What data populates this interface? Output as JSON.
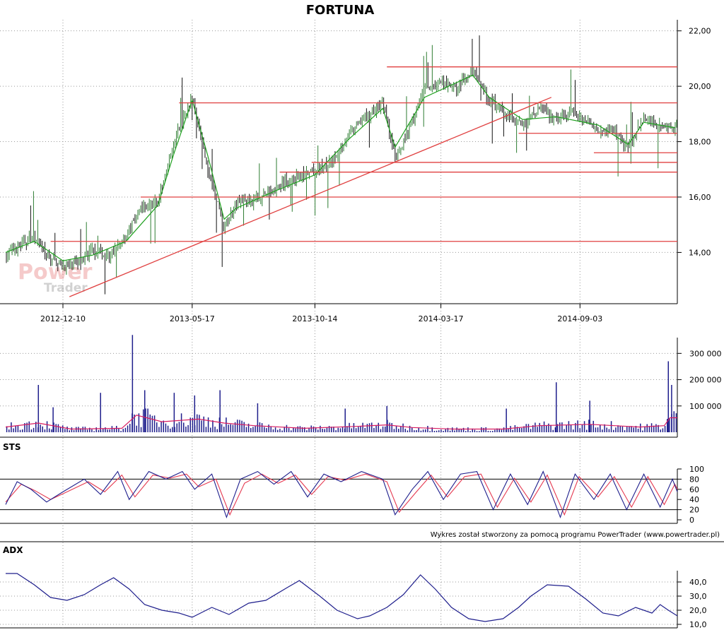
{
  "chart_data": [
    {
      "type": "candlestick",
      "title": "FORTUNA",
      "x_tick_labels": [
        "2012-12-10",
        "2013-05-17",
        "2013-10-14",
        "2014-03-17",
        "2014-09-03"
      ],
      "y_tick_labels": [
        "14,00",
        "16,00",
        "18,00",
        "20,00",
        "22,00"
      ],
      "ylim": [
        12.2,
        22.4
      ],
      "x_range": [
        "2012-10-01",
        "2014-12-31"
      ],
      "grid": true,
      "price_close": [
        [
          "2012-10-01",
          13.9
        ],
        [
          "2012-10-20",
          14.3
        ],
        [
          "2012-11-05",
          14.6
        ],
        [
          "2012-11-20",
          13.9
        ],
        [
          "2012-12-10",
          13.5
        ],
        [
          "2012-12-28",
          13.6
        ],
        [
          "2013-01-15",
          14.1
        ],
        [
          "2013-02-05",
          13.8
        ],
        [
          "2013-02-25",
          14.6
        ],
        [
          "2013-03-15",
          15.6
        ],
        [
          "2013-04-05",
          15.8
        ],
        [
          "2013-04-25",
          18.0
        ],
        [
          "2013-05-17",
          19.6
        ],
        [
          "2013-06-05",
          17.0
        ],
        [
          "2013-06-25",
          14.9
        ],
        [
          "2013-07-10",
          15.8
        ],
        [
          "2013-08-01",
          15.9
        ],
        [
          "2013-08-25",
          16.3
        ],
        [
          "2013-09-20",
          16.7
        ],
        [
          "2013-10-14",
          16.9
        ],
        [
          "2013-11-05",
          17.3
        ],
        [
          "2013-11-25",
          18.3
        ],
        [
          "2013-12-15",
          18.9
        ],
        [
          "2014-01-05",
          19.4
        ],
        [
          "2014-01-20",
          17.4
        ],
        [
          "2014-02-05",
          18.4
        ],
        [
          "2014-02-25",
          19.9
        ],
        [
          "2014-03-17",
          20.1
        ],
        [
          "2014-04-05",
          19.9
        ],
        [
          "2014-04-25",
          20.6
        ],
        [
          "2014-05-15",
          19.5
        ],
        [
          "2014-06-05",
          19.0
        ],
        [
          "2014-06-25",
          18.6
        ],
        [
          "2014-07-15",
          19.2
        ],
        [
          "2014-08-05",
          18.8
        ],
        [
          "2014-08-25",
          19.0
        ],
        [
          "2014-09-03",
          18.9
        ],
        [
          "2014-09-25",
          18.5
        ],
        [
          "2014-10-15",
          18.4
        ],
        [
          "2014-11-01",
          17.7
        ],
        [
          "2014-11-20",
          18.9
        ],
        [
          "2014-12-10",
          18.6
        ],
        [
          "2014-12-28",
          18.5
        ]
      ],
      "moving_average": [
        [
          "2012-10-01",
          14.0
        ],
        [
          "2012-11-05",
          14.4
        ],
        [
          "2012-12-10",
          13.7
        ],
        [
          "2013-01-15",
          13.9
        ],
        [
          "2013-02-25",
          14.4
        ],
        [
          "2013-04-05",
          15.7
        ],
        [
          "2013-04-25",
          17.6
        ],
        [
          "2013-05-17",
          19.5
        ],
        [
          "2013-06-05",
          17.5
        ],
        [
          "2013-06-25",
          15.2
        ],
        [
          "2013-07-10",
          15.6
        ],
        [
          "2013-08-25",
          16.2
        ],
        [
          "2013-10-14",
          16.8
        ],
        [
          "2013-11-25",
          18.1
        ],
        [
          "2014-01-05",
          19.2
        ],
        [
          "2014-01-20",
          17.8
        ],
        [
          "2014-02-25",
          19.6
        ],
        [
          "2014-04-25",
          20.4
        ],
        [
          "2014-05-15",
          19.6
        ],
        [
          "2014-06-25",
          18.8
        ],
        [
          "2014-08-05",
          18.9
        ],
        [
          "2014-09-25",
          18.6
        ],
        [
          "2014-11-01",
          17.9
        ],
        [
          "2014-11-20",
          18.7
        ],
        [
          "2014-12-28",
          18.5
        ]
      ],
      "trend_line": [
        [
          "2012-12-18",
          12.4
        ],
        [
          "2014-07-30",
          19.6
        ]
      ],
      "horizontal_levels": [
        {
          "y": 20.7,
          "from": "2014-01-10",
          "to": "2014-12-31"
        },
        {
          "y": 19.4,
          "from": "2013-05-01",
          "to": "2014-12-31"
        },
        {
          "y": 18.3,
          "from": "2014-06-20",
          "to": "2014-12-31"
        },
        {
          "y": 17.6,
          "from": "2014-09-20",
          "to": "2014-12-31"
        },
        {
          "y": 17.25,
          "from": "2013-10-10",
          "to": "2014-12-31"
        },
        {
          "y": 16.9,
          "from": "2013-09-01",
          "to": "2014-12-31"
        },
        {
          "y": 16.0,
          "from": "2013-03-15",
          "to": "2014-12-31"
        },
        {
          "y": 14.4,
          "from": "2012-11-25",
          "to": "2014-12-31"
        }
      ],
      "watermark": [
        "Power",
        "Trader"
      ]
    },
    {
      "type": "bar",
      "y_tick_labels": [
        "100 000",
        "200 000",
        "300 000"
      ],
      "ylim": [
        0,
        360000
      ],
      "volume_spikes": [
        [
          "2012-11-10",
          180000
        ],
        [
          "2012-11-28",
          95000
        ],
        [
          "2013-01-25",
          150000
        ],
        [
          "2013-03-05",
          370000
        ],
        [
          "2013-03-20",
          160000
        ],
        [
          "2013-04-25",
          150000
        ],
        [
          "2013-05-20",
          140000
        ],
        [
          "2013-06-20",
          160000
        ],
        [
          "2013-08-05",
          110000
        ],
        [
          "2013-11-20",
          90000
        ],
        [
          "2014-01-10",
          100000
        ],
        [
          "2014-06-05",
          90000
        ],
        [
          "2014-08-05",
          190000
        ],
        [
          "2014-09-15",
          120000
        ],
        [
          "2014-12-20",
          270000
        ],
        [
          "2014-12-24",
          180000
        ]
      ],
      "volume_average": [
        [
          "2012-10-01",
          20000
        ],
        [
          "2012-11-10",
          35000
        ],
        [
          "2012-12-20",
          12000
        ],
        [
          "2013-02-20",
          15000
        ],
        [
          "2013-03-10",
          65000
        ],
        [
          "2013-04-10",
          40000
        ],
        [
          "2013-05-25",
          50000
        ],
        [
          "2013-06-25",
          35000
        ],
        [
          "2013-08-01",
          25000
        ],
        [
          "2013-10-01",
          15000
        ],
        [
          "2013-12-01",
          22000
        ],
        [
          "2014-01-10",
          28000
        ],
        [
          "2014-02-10",
          18000
        ],
        [
          "2014-04-01",
          12000
        ],
        [
          "2014-06-01",
          12000
        ],
        [
          "2014-07-15",
          25000
        ],
        [
          "2014-09-15",
          30000
        ],
        [
          "2014-11-15",
          20000
        ],
        [
          "2014-12-15",
          25000
        ],
        [
          "2014-12-22",
          55000
        ],
        [
          "2014-12-31",
          55000
        ]
      ]
    },
    {
      "type": "line",
      "label": "STS",
      "y_tick_labels": [
        "0",
        "20",
        "40",
        "60",
        "80",
        "100"
      ],
      "ylim": [
        0,
        100
      ],
      "reference_lines": [
        20,
        80
      ],
      "k_line": [
        [
          "2012-10-01",
          30
        ],
        [
          "2012-10-15",
          75
        ],
        [
          "2012-11-01",
          60
        ],
        [
          "2012-11-20",
          35
        ],
        [
          "2012-12-10",
          55
        ],
        [
          "2013-01-05",
          80
        ],
        [
          "2013-01-25",
          50
        ],
        [
          "2013-02-15",
          95
        ],
        [
          "2013-03-01",
          40
        ],
        [
          "2013-03-25",
          95
        ],
        [
          "2013-04-15",
          80
        ],
        [
          "2013-05-05",
          95
        ],
        [
          "2013-05-20",
          60
        ],
        [
          "2013-06-10",
          90
        ],
        [
          "2013-06-28",
          5
        ],
        [
          "2013-07-15",
          80
        ],
        [
          "2013-08-05",
          95
        ],
        [
          "2013-08-25",
          70
        ],
        [
          "2013-09-15",
          95
        ],
        [
          "2013-10-05",
          45
        ],
        [
          "2013-10-25",
          90
        ],
        [
          "2013-11-15",
          75
        ],
        [
          "2013-12-10",
          95
        ],
        [
          "2014-01-05",
          80
        ],
        [
          "2014-01-20",
          10
        ],
        [
          "2014-02-10",
          60
        ],
        [
          "2014-03-01",
          95
        ],
        [
          "2014-03-20",
          40
        ],
        [
          "2014-04-10",
          90
        ],
        [
          "2014-04-30",
          95
        ],
        [
          "2014-05-20",
          20
        ],
        [
          "2014-06-10",
          90
        ],
        [
          "2014-07-01",
          30
        ],
        [
          "2014-07-20",
          95
        ],
        [
          "2014-08-10",
          5
        ],
        [
          "2014-08-28",
          90
        ],
        [
          "2014-09-20",
          40
        ],
        [
          "2014-10-10",
          90
        ],
        [
          "2014-10-30",
          20
        ],
        [
          "2014-11-20",
          90
        ],
        [
          "2014-12-10",
          25
        ],
        [
          "2014-12-25",
          80
        ],
        [
          "2014-12-31",
          55
        ]
      ],
      "d_line": [
        [
          "2012-10-01",
          35
        ],
        [
          "2012-10-20",
          70
        ],
        [
          "2012-11-05",
          58
        ],
        [
          "2012-11-25",
          40
        ],
        [
          "2012-12-15",
          55
        ],
        [
          "2013-01-10",
          75
        ],
        [
          "2013-01-30",
          55
        ],
        [
          "2013-02-20",
          88
        ],
        [
          "2013-03-08",
          45
        ],
        [
          "2013-03-30",
          88
        ],
        [
          "2013-04-20",
          82
        ],
        [
          "2013-05-10",
          90
        ],
        [
          "2013-05-25",
          65
        ],
        [
          "2013-06-15",
          80
        ],
        [
          "2013-07-02",
          10
        ],
        [
          "2013-07-20",
          72
        ],
        [
          "2013-08-10",
          90
        ],
        [
          "2013-08-30",
          72
        ],
        [
          "2013-09-20",
          88
        ],
        [
          "2013-10-10",
          50
        ],
        [
          "2013-10-30",
          85
        ],
        [
          "2013-11-20",
          78
        ],
        [
          "2013-12-15",
          90
        ],
        [
          "2014-01-10",
          75
        ],
        [
          "2014-01-25",
          15
        ],
        [
          "2014-02-15",
          55
        ],
        [
          "2014-03-05",
          88
        ],
        [
          "2014-03-25",
          45
        ],
        [
          "2014-04-15",
          85
        ],
        [
          "2014-05-05",
          90
        ],
        [
          "2014-05-25",
          25
        ],
        [
          "2014-06-15",
          82
        ],
        [
          "2014-07-05",
          35
        ],
        [
          "2014-07-25",
          88
        ],
        [
          "2014-08-15",
          10
        ],
        [
          "2014-09-02",
          85
        ],
        [
          "2014-09-25",
          45
        ],
        [
          "2014-10-15",
          85
        ],
        [
          "2014-11-05",
          25
        ],
        [
          "2014-11-25",
          85
        ],
        [
          "2014-12-15",
          30
        ],
        [
          "2014-12-28",
          70
        ],
        [
          "2014-12-31",
          60
        ]
      ]
    },
    {
      "type": "line",
      "label": "ADX",
      "y_tick_labels": [
        "10,0",
        "20,0",
        "30,0",
        "40,0"
      ],
      "ylim": [
        8,
        48
      ],
      "adx_line": [
        [
          "2012-10-01",
          46
        ],
        [
          "2012-10-15",
          46
        ],
        [
          "2012-11-05",
          38
        ],
        [
          "2012-11-25",
          29
        ],
        [
          "2012-12-15",
          27
        ],
        [
          "2013-01-05",
          31
        ],
        [
          "2013-01-25",
          38
        ],
        [
          "2013-02-10",
          43
        ],
        [
          "2013-03-01",
          35
        ],
        [
          "2013-03-20",
          24
        ],
        [
          "2013-04-10",
          20
        ],
        [
          "2013-05-01",
          18
        ],
        [
          "2013-05-17",
          15
        ],
        [
          "2013-06-10",
          22
        ],
        [
          "2013-07-01",
          17
        ],
        [
          "2013-07-25",
          25
        ],
        [
          "2013-08-15",
          27
        ],
        [
          "2013-09-10",
          36
        ],
        [
          "2013-09-25",
          41
        ],
        [
          "2013-10-20",
          30
        ],
        [
          "2013-11-10",
          20
        ],
        [
          "2013-12-05",
          14
        ],
        [
          "2013-12-20",
          16
        ],
        [
          "2014-01-10",
          22
        ],
        [
          "2014-01-30",
          31
        ],
        [
          "2014-02-20",
          45
        ],
        [
          "2014-03-10",
          35
        ],
        [
          "2014-03-30",
          22
        ],
        [
          "2014-04-20",
          14
        ],
        [
          "2014-05-10",
          12
        ],
        [
          "2014-06-01",
          14
        ],
        [
          "2014-06-20",
          22
        ],
        [
          "2014-07-05",
          30
        ],
        [
          "2014-07-25",
          38
        ],
        [
          "2014-08-20",
          37
        ],
        [
          "2014-09-10",
          28
        ],
        [
          "2014-10-01",
          18
        ],
        [
          "2014-10-20",
          16
        ],
        [
          "2014-11-10",
          22
        ],
        [
          "2014-11-30",
          18
        ],
        [
          "2014-12-10",
          24
        ],
        [
          "2014-12-20",
          20
        ],
        [
          "2014-12-31",
          16
        ]
      ]
    }
  ],
  "credit": "Wykres został stworzony za pomocą programu PowerTrader (www.powertrader.pl)",
  "colors": {
    "candle_up": "#2e7d32",
    "candle_down": "#111111",
    "moving_average": "#1fa01f",
    "levels": "#e04040",
    "volume": "#1e1e8c",
    "volume_average": "#d81b60",
    "stoch_k": "#1e1e8c",
    "stoch_d": "#e53950",
    "adx": "#1e1e8c",
    "grid": "#9a9a9a"
  }
}
